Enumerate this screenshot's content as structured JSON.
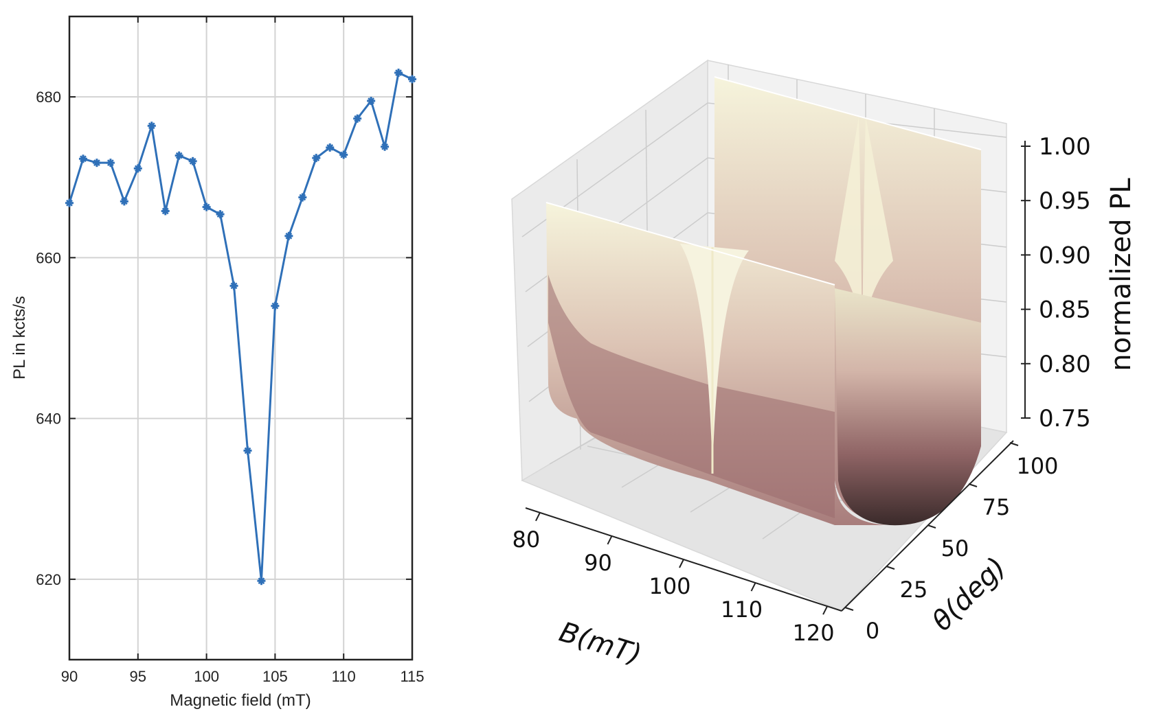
{
  "chart_data": [
    {
      "type": "line",
      "title": "",
      "xlabel": "Magnetic field (mT)",
      "ylabel": "PL in kcts/s",
      "xlim": [
        90,
        115
      ],
      "ylim": [
        610,
        690
      ],
      "xticks": [
        90,
        95,
        100,
        105,
        110,
        115
      ],
      "yticks": [
        620,
        640,
        660,
        680
      ],
      "grid": true,
      "marker": "star",
      "color": "#2f70b8",
      "x": [
        90,
        91,
        92,
        93,
        94,
        95,
        96,
        97,
        98,
        99,
        100,
        101,
        102,
        103,
        104,
        105,
        106,
        107,
        108,
        109,
        110,
        111,
        112,
        113,
        114,
        115
      ],
      "y": [
        666.8,
        672.3,
        671.8,
        671.8,
        667.0,
        671.1,
        676.4,
        665.8,
        672.7,
        672.0,
        666.3,
        665.4,
        656.5,
        636.0,
        619.8,
        654.0,
        662.7,
        667.5,
        672.4,
        673.7,
        672.8,
        677.3,
        679.5,
        673.8,
        683.0,
        682.2
      ]
    },
    {
      "type": "surface3d",
      "title": "",
      "xlabel": "B(mT)",
      "ylabel": "θ(deg)",
      "zlabel": "normalized PL",
      "xlim": [
        78,
        122
      ],
      "ylim": [
        0,
        100
      ],
      "zlim": [
        0.73,
        1.0
      ],
      "xticks": [
        80,
        90,
        100,
        110,
        120
      ],
      "yticks": [
        0,
        25,
        50,
        75,
        100
      ],
      "zticks": [
        0.75,
        0.8,
        0.85,
        0.9,
        0.95,
        1.0
      ],
      "zticklabels": [
        "0.75",
        "0.80",
        "0.85",
        "0.90",
        "0.95",
        "1.00"
      ],
      "colormap": "pink",
      "surface_dip_center_B": 102.5,
      "surface_edge_PL": 1.0,
      "surface_min_PL": 0.73
    }
  ]
}
